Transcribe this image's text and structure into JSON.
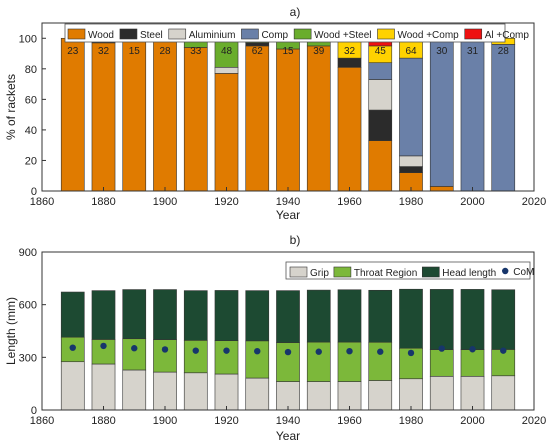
{
  "chart_data": [
    {
      "type": "bar",
      "stacked": true,
      "panel_label": "a)",
      "xlabel": "Year",
      "ylabel": "% of rackets",
      "xlim": [
        1860,
        2020
      ],
      "ylim": [
        0,
        110
      ],
      "xticks": [
        1860,
        1880,
        1900,
        1920,
        1940,
        1960,
        1980,
        2000,
        2020
      ],
      "yticks": [
        0,
        20,
        40,
        60,
        80,
        100
      ],
      "grid": false,
      "legend": "top",
      "x": [
        1870,
        1880,
        1890,
        1900,
        1910,
        1920,
        1930,
        1940,
        1950,
        1960,
        1970,
        1980,
        1990,
        2000,
        2010
      ],
      "counts": [
        "23",
        "32",
        "15",
        "28",
        "33",
        "48",
        "62",
        "15",
        "39",
        "32",
        "45",
        "64",
        "30",
        "31",
        "28"
      ],
      "series": [
        {
          "name": "Wood",
          "color": "#e07b00",
          "values": [
            100,
            97,
            100,
            100,
            94,
            77,
            95,
            93,
            95,
            81,
            33,
            12,
            3,
            0,
            0
          ]
        },
        {
          "name": "Steel",
          "color": "#2b2b2b",
          "values": [
            0,
            3,
            0,
            0,
            0,
            0,
            2,
            0,
            0,
            6,
            20,
            4,
            0,
            0,
            0
          ]
        },
        {
          "name": "Aluminium",
          "color": "#d6d3cc",
          "values": [
            0,
            0,
            0,
            0,
            0,
            4,
            0,
            0,
            0,
            0,
            20,
            7,
            0,
            0,
            0
          ]
        },
        {
          "name": "Comp",
          "color": "#6a80a8",
          "values": [
            0,
            0,
            0,
            0,
            0,
            0,
            0,
            0,
            0,
            0,
            11,
            64,
            97,
            100,
            96
          ]
        },
        {
          "name": "Wood +Steel",
          "color": "#6aad2c",
          "values": [
            0,
            0,
            0,
            0,
            6,
            19,
            3,
            7,
            5,
            0,
            0,
            0,
            0,
            0,
            0
          ]
        },
        {
          "name": "Wood +Comp",
          "color": "#ffd200",
          "values": [
            0,
            0,
            0,
            0,
            0,
            0,
            0,
            0,
            0,
            13,
            11,
            13,
            0,
            0,
            4
          ]
        },
        {
          "name": "Al +Comp",
          "color": "#ee1111",
          "values": [
            0,
            0,
            0,
            0,
            0,
            0,
            0,
            0,
            0,
            0,
            5,
            0,
            0,
            0,
            0
          ]
        }
      ]
    },
    {
      "type": "bar",
      "stacked": true,
      "panel_label": "b)",
      "xlabel": "Year",
      "ylabel": "Length (mm)",
      "xlim": [
        1860,
        2020
      ],
      "ylim": [
        0,
        900
      ],
      "xticks": [
        1860,
        1880,
        1900,
        1920,
        1940,
        1960,
        1980,
        2000,
        2020
      ],
      "yticks": [
        0,
        300,
        600,
        900
      ],
      "grid": false,
      "legend": "top-right",
      "x": [
        1870,
        1880,
        1890,
        1900,
        1910,
        1920,
        1930,
        1940,
        1950,
        1960,
        1970,
        1980,
        1990,
        2000,
        2010
      ],
      "series": [
        {
          "name": "Grip",
          "color": "#d6d3cc",
          "values": [
            275,
            262,
            228,
            216,
            212,
            205,
            182,
            162,
            162,
            162,
            168,
            178,
            192,
            192,
            195
          ]
        },
        {
          "name": "Throat Region",
          "color": "#7cb83a",
          "values": [
            140,
            140,
            178,
            185,
            185,
            190,
            212,
            222,
            225,
            225,
            218,
            174,
            152,
            152,
            150
          ]
        },
        {
          "name": "Head length",
          "color": "#1d4a32",
          "values": [
            257,
            278,
            280,
            285,
            283,
            286,
            286,
            296,
            296,
            298,
            296,
            336,
            343,
            343,
            340
          ]
        }
      ],
      "com": {
        "name": "CoM",
        "color": "#17366b",
        "values": [
          355,
          365,
          352,
          345,
          338,
          338,
          335,
          330,
          332,
          335,
          332,
          325,
          350,
          346,
          338
        ]
      }
    }
  ]
}
